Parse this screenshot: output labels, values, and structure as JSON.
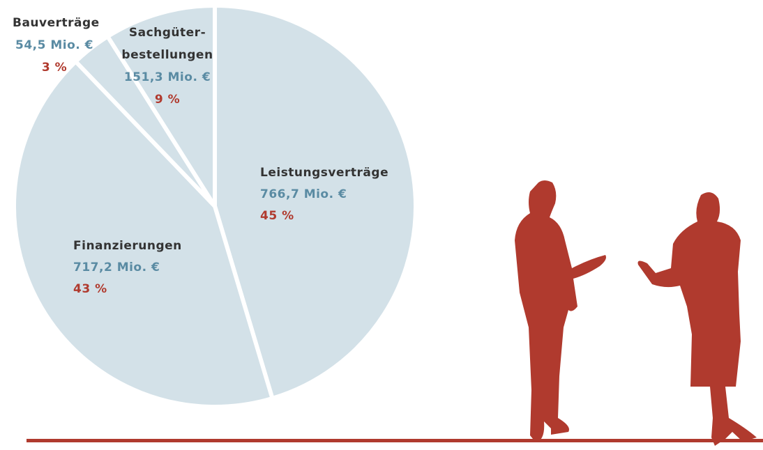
{
  "chart_data": {
    "type": "pie",
    "categories": [
      "Leistungsverträge",
      "Finanzierungen",
      "Bauverträge",
      "Sachgüter-\nbestellungen"
    ],
    "values": [
      766.7,
      717.2,
      54.5,
      151.3
    ],
    "value_labels": [
      "766,7 Mio. €",
      "717,2 Mio. €",
      "54,5 Mio. €",
      "151,3 Mio. €"
    ],
    "shares": [
      45,
      43,
      3,
      9
    ],
    "share_labels": [
      "45 %",
      "43 %",
      "3 %",
      "9 %"
    ],
    "color": "#d3e1e8"
  }
}
